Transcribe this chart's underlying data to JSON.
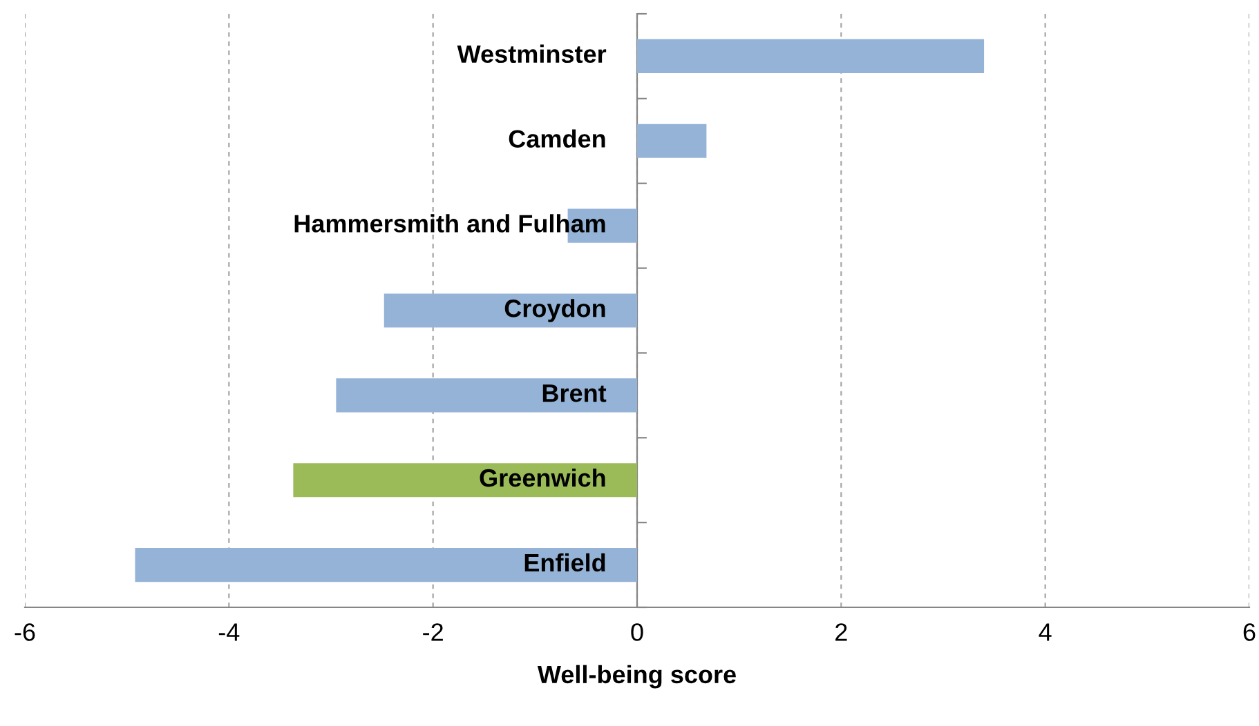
{
  "chart_data": {
    "type": "bar",
    "orientation": "horizontal",
    "xlabel": "Well-being score",
    "categories": [
      "Westminster",
      "Camden",
      "Hammersmith and Fulham",
      "Croydon",
      "Brent",
      "Greenwich",
      "Enfield"
    ],
    "values": [
      3.4,
      0.68,
      -0.68,
      -2.48,
      -2.95,
      -3.37,
      -4.92
    ],
    "colors": [
      "#95b3d7",
      "#95b3d7",
      "#95b3d7",
      "#95b3d7",
      "#95b3d7",
      "#9bbb59",
      "#95b3d7"
    ],
    "xlim": [
      -6,
      6
    ],
    "xticks": [
      -6,
      -4,
      -2,
      0,
      2,
      4,
      6
    ],
    "grid": "x"
  }
}
